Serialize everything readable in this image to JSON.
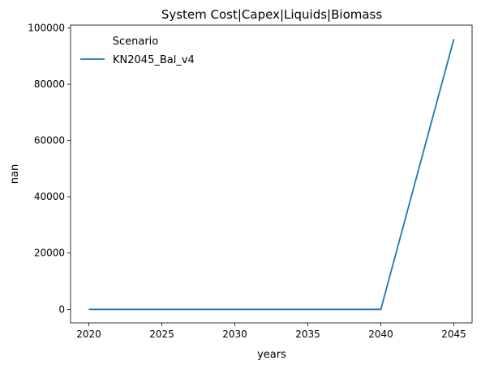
{
  "chart_data": {
    "type": "line",
    "title": "System Cost|Capex|Liquids|Biomass",
    "xlabel": "years",
    "ylabel": "nan",
    "x": [
      2020,
      2025,
      2030,
      2035,
      2040,
      2045
    ],
    "xticks": [
      "2020",
      "2025",
      "2030",
      "2035",
      "2040",
      "2045"
    ],
    "yticks": [
      "0",
      "20000",
      "40000",
      "60000",
      "80000",
      "100000"
    ],
    "ytick_values": [
      0,
      20000,
      40000,
      60000,
      80000,
      100000
    ],
    "xlim": [
      2018.75,
      2046.25
    ],
    "ylim": [
      -4800,
      101000
    ],
    "legend": {
      "title": "Scenario",
      "placement": "top-left"
    },
    "series": [
      {
        "name": "KN2045_Bal_v4",
        "color": "#1f77b4",
        "values": [
          0,
          0,
          0,
          0,
          0,
          96000
        ]
      }
    ]
  }
}
